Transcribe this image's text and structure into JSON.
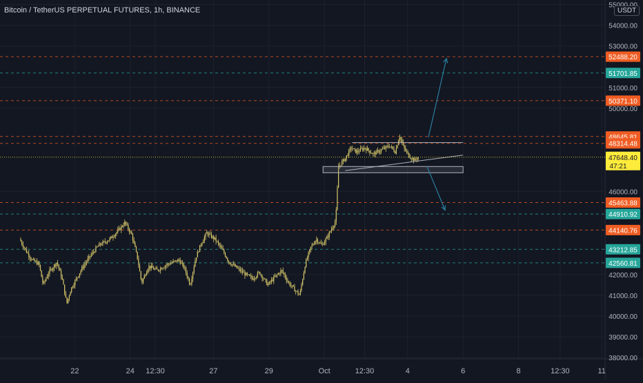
{
  "header": {
    "title": "Bitcoin / TetherUS PERPETUAL FUTURES, 1h, BINANCE",
    "unit_badge": "USDT"
  },
  "colors": {
    "background": "#131722",
    "candle": "#d9c96a",
    "grid": "#1e222d",
    "axis_text": "#b2b5be",
    "resistance": "#f05d23",
    "support": "#26a69a",
    "arrow": "#2a7f9e",
    "pattern": "#b2b5be",
    "last_price_bg": "#ffeb3b"
  },
  "chart_data": {
    "type": "candlestick",
    "title": "Bitcoin / TetherUS PERPETUAL FUTURES, 1h, BINANCE",
    "ylim": [
      38000,
      55000
    ],
    "y_ticks": [
      38000,
      39000,
      40000,
      41000,
      42000,
      46000,
      50000,
      51000,
      53000,
      54000,
      55000
    ],
    "y_tick_labels": [
      "38000.00",
      "39000.00",
      "40000.00",
      "41000.00",
      "42000.00",
      "46000.00",
      "50000.00",
      "51000.00",
      "53000.00",
      "54000.00",
      "55000.00"
    ],
    "x_ticks": [
      {
        "label": "22",
        "day": 2
      },
      {
        "label": "24",
        "day": 4
      },
      {
        "label": "12:30",
        "day": 4.9
      },
      {
        "label": "27",
        "day": 7
      },
      {
        "label": "29",
        "day": 9
      },
      {
        "label": "Oct",
        "day": 11
      },
      {
        "label": "12:30",
        "day": 12.45
      },
      {
        "label": "4",
        "day": 14
      },
      {
        "label": "6",
        "day": 16
      },
      {
        "label": "8",
        "day": 18
      },
      {
        "label": "12:30",
        "day": 19.5
      },
      {
        "label": "11",
        "day": 21
      }
    ],
    "price_path": [
      [
        0.05,
        43700
      ],
      [
        0.3,
        43100
      ],
      [
        0.5,
        42700
      ],
      [
        0.75,
        42500
      ],
      [
        0.9,
        41500
      ],
      [
        1.1,
        42100
      ],
      [
        1.4,
        42600
      ],
      [
        1.6,
        41700
      ],
      [
        1.75,
        40600
      ],
      [
        1.9,
        41300
      ],
      [
        2.1,
        41800
      ],
      [
        2.3,
        42300
      ],
      [
        2.6,
        42900
      ],
      [
        2.9,
        43400
      ],
      [
        3.3,
        43700
      ],
      [
        3.6,
        44100
      ],
      [
        3.85,
        44500
      ],
      [
        4.1,
        43900
      ],
      [
        4.3,
        42800
      ],
      [
        4.45,
        41600
      ],
      [
        4.7,
        42400
      ],
      [
        5.0,
        42200
      ],
      [
        5.4,
        42500
      ],
      [
        5.8,
        42700
      ],
      [
        6.0,
        42300
      ],
      [
        6.2,
        41500
      ],
      [
        6.4,
        42800
      ],
      [
        6.6,
        43500
      ],
      [
        6.8,
        44000
      ],
      [
        7.1,
        43700
      ],
      [
        7.4,
        43100
      ],
      [
        7.6,
        42600
      ],
      [
        7.8,
        42400
      ],
      [
        8.0,
        42200
      ],
      [
        8.2,
        42000
      ],
      [
        8.45,
        41800
      ],
      [
        8.7,
        42100
      ],
      [
        9.0,
        41500
      ],
      [
        9.2,
        41800
      ],
      [
        9.5,
        42200
      ],
      [
        9.75,
        41600
      ],
      [
        9.95,
        41300
      ],
      [
        10.15,
        41000
      ],
      [
        10.35,
        42500
      ],
      [
        10.55,
        43300
      ],
      [
        10.75,
        43700
      ],
      [
        10.95,
        43400
      ],
      [
        11.15,
        43800
      ],
      [
        11.3,
        44200
      ],
      [
        11.45,
        44600
      ],
      [
        11.55,
        47200
      ],
      [
        11.8,
        47600
      ],
      [
        12.0,
        48100
      ],
      [
        12.2,
        47900
      ],
      [
        12.5,
        48100
      ],
      [
        12.8,
        47800
      ],
      [
        13.1,
        48000
      ],
      [
        13.4,
        48200
      ],
      [
        13.6,
        47900
      ],
      [
        13.75,
        48700
      ],
      [
        13.9,
        48100
      ],
      [
        14.1,
        47700
      ],
      [
        14.3,
        47500
      ],
      [
        14.42,
        47650
      ]
    ],
    "horizontal_levels": [
      {
        "price": 52488.2,
        "label": "52488.20",
        "kind": "resistance"
      },
      {
        "price": 51701.85,
        "label": "51701.85",
        "kind": "support"
      },
      {
        "price": 50371.1,
        "label": "50371.10",
        "kind": "resistance"
      },
      {
        "price": 48645.81,
        "label": "48645.81",
        "kind": "resistance"
      },
      {
        "price": 48314.48,
        "label": "48314.48",
        "kind": "resistance"
      },
      {
        "price": 45463.88,
        "label": "45463.88",
        "kind": "resistance"
      },
      {
        "price": 44910.92,
        "label": "44910.92",
        "kind": "support"
      },
      {
        "price": 44140.76,
        "label": "44140.76",
        "kind": "resistance"
      },
      {
        "price": 43212.85,
        "label": "43212.85",
        "kind": "support"
      },
      {
        "price": 42560.81,
        "label": "42560.81",
        "kind": "support"
      }
    ],
    "last_price": {
      "price": 47648.4,
      "label": "47648.40",
      "countdown": "47:21"
    },
    "drawings": {
      "triangle_top": {
        "day_from": 12.0,
        "day_to": 16.0,
        "price": 48350
      },
      "trend_line": {
        "day_from": 11.75,
        "price_from": 47000,
        "day_to": 16.0,
        "price_to": 47750
      },
      "base_rectangle": {
        "day_from": 10.95,
        "day_to": 16.0,
        "price_from": 46900,
        "price_to": 47200
      },
      "arrow_up": {
        "day_from": 14.75,
        "price_from": 48600,
        "day_to": 15.4,
        "price_to": 52400
      },
      "arrow_down": {
        "day_from": 14.7,
        "price_from": 47200,
        "day_to": 15.35,
        "price_to": 45100
      }
    }
  }
}
